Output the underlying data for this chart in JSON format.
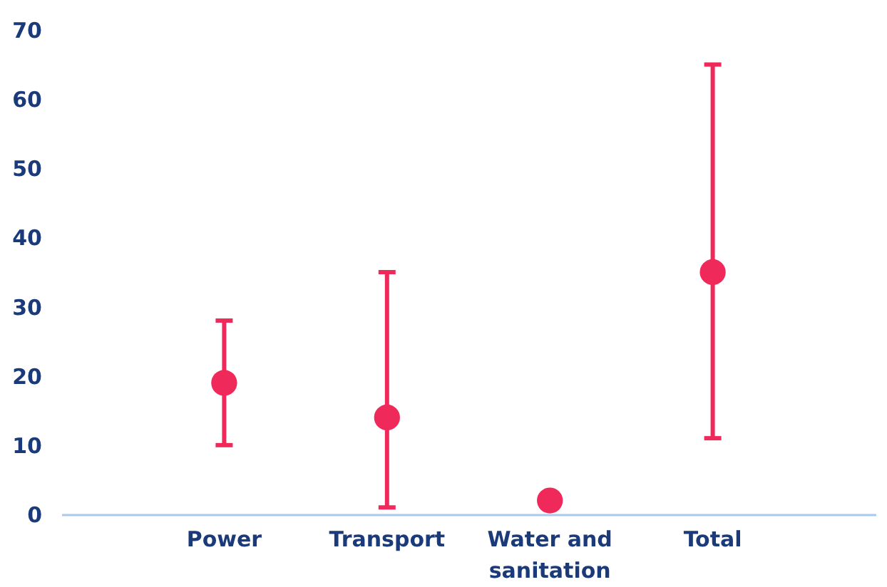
{
  "chart_data": {
    "type": "scatter",
    "categories": [
      "Power",
      "Transport",
      "Water and sanitation",
      "Total"
    ],
    "values": [
      19,
      14,
      2,
      35
    ],
    "errors": [
      [
        10,
        28
      ],
      [
        1,
        35
      ],
      null,
      [
        11,
        65
      ]
    ],
    "color": "#ef2a5b",
    "ylim": [
      0,
      70
    ],
    "yticks": [
      0,
      10,
      20,
      30,
      40,
      50,
      60,
      70
    ],
    "grid": false
  }
}
